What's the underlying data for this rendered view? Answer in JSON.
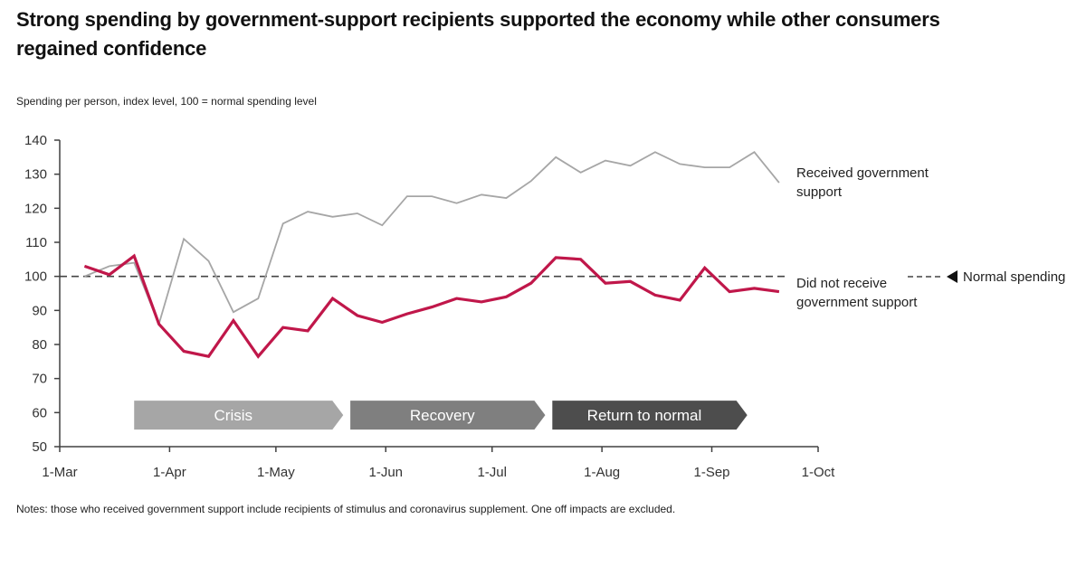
{
  "title": "Strong spending by government-support recipients supported the economy while other consumers regained confidence",
  "subtitle": "Spending per person, index level, 100 = normal spending level",
  "notes": "Notes: those who received government support include recipients of stimulus and coronavirus supplement. One off impacts are excluded.",
  "chart_data": {
    "type": "line",
    "title": "Strong spending by government-support recipients supported the economy while other consumers regained confidence",
    "ylabel": "Spending per person, index level, 100 = normal spending level",
    "xlabel": "",
    "ylim": [
      50,
      140
    ],
    "yticks": [
      50,
      60,
      70,
      80,
      90,
      100,
      110,
      120,
      130,
      140
    ],
    "xticks": [
      "1-Mar",
      "1-Apr",
      "1-May",
      "1-Jun",
      "1-Jul",
      "1-Aug",
      "1-Sep",
      "1-Oct"
    ],
    "x_unit": "days since 1-Mar",
    "xlim": [
      0,
      214
    ],
    "grid": false,
    "x": [
      7,
      14,
      21,
      28,
      35,
      42,
      49,
      56,
      63,
      70,
      77,
      84,
      91,
      98,
      105,
      112,
      119,
      126,
      133,
      140,
      147,
      154,
      161,
      168,
      175,
      182,
      189,
      196,
      203
    ],
    "series": [
      {
        "name": "Received government support",
        "color": "#a6a6a6",
        "values": [
          100,
          103,
          104,
          86,
          111,
          104.5,
          89.5,
          93.5,
          115.5,
          119,
          117.5,
          118.5,
          115,
          123.5,
          123.5,
          121.5,
          124,
          123,
          128,
          135,
          130.5,
          134,
          132.5,
          136.5,
          133,
          132,
          132,
          136.5,
          127.5
        ]
      },
      {
        "name": "Did not receive government support",
        "color": "#c0174a",
        "values": [
          103,
          100.5,
          106,
          86,
          78,
          76.5,
          87,
          76.5,
          85,
          84,
          93.5,
          88.5,
          86.5,
          89,
          91,
          93.5,
          92.5,
          94,
          98,
          105.5,
          105,
          98,
          98.5,
          94.5,
          93,
          102.5,
          95.5,
          96.5,
          95.5
        ]
      }
    ],
    "reference_line": {
      "name": "Normal spending",
      "value": 100,
      "style": "dashed",
      "color": "#444444"
    },
    "annotations": [
      {
        "text_lines": [
          "Received government",
          "support"
        ],
        "series": "Received government support"
      },
      {
        "text_lines": [
          "Did not receive",
          "government support"
        ],
        "series": "Did not receive government support"
      },
      {
        "text": "Normal spending",
        "icon": "left-triangle-icon"
      }
    ],
    "phases": [
      {
        "label": "Crisis",
        "start_day": 21,
        "end_day": 80,
        "color": "#a6a6a6"
      },
      {
        "label": "Recovery",
        "start_day": 82,
        "end_day": 137,
        "color": "#7f7f7f"
      },
      {
        "label": "Return to normal",
        "start_day": 139,
        "end_day": 194,
        "color": "#4d4d4d"
      }
    ]
  }
}
